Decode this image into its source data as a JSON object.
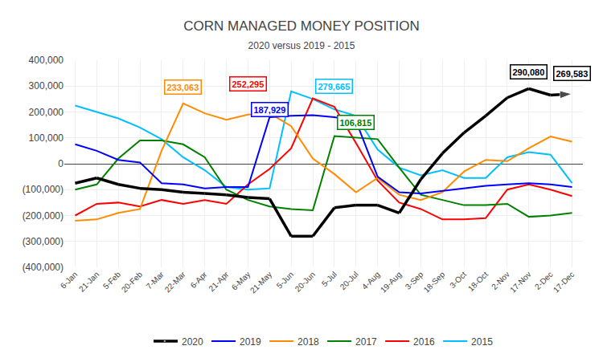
{
  "chart_data": {
    "type": "line",
    "title": "CORN MANAGED MONEY POSITION",
    "subtitle": "2020 versus 2019 - 2015",
    "categories": [
      "6-Jan",
      "21-Jan",
      "5-Feb",
      "20-Feb",
      "7-Mar",
      "22-Mar",
      "6-Apr",
      "21-Apr",
      "6-May",
      "21-May",
      "5-Jun",
      "20-Jun",
      "5-Jul",
      "20-Jul",
      "4-Aug",
      "19-Aug",
      "3-Sep",
      "18-Sep",
      "3-Oct",
      "18-Oct",
      "2-Nov",
      "17-Nov",
      "2-Dec",
      "17-Dec"
    ],
    "series": [
      {
        "name": "2015",
        "color": "#00BFFF",
        "values": [
          225000,
          200000,
          175000,
          140000,
          95000,
          25000,
          -25000,
          -90000,
          -100000,
          -95000,
          279665,
          250000,
          210000,
          185000,
          55000,
          -15000,
          -45000,
          -25000,
          -55000,
          -55000,
          25000,
          45000,
          35000,
          -75000
        ]
      },
      {
        "name": "2016",
        "color": "#FF0000",
        "values": [
          -200000,
          -155000,
          -150000,
          -165000,
          -140000,
          -155000,
          -140000,
          -155000,
          -80000,
          -20000,
          60000,
          252295,
          220000,
          80000,
          -65000,
          -150000,
          -175000,
          -215000,
          -215000,
          -210000,
          -100000,
          -80000,
          -100000,
          -125000
        ]
      },
      {
        "name": "2017",
        "color": "#008000",
        "values": [
          -100000,
          -80000,
          20000,
          90000,
          90000,
          75000,
          25000,
          -100000,
          -140000,
          -165000,
          -175000,
          -180000,
          106815,
          100000,
          95000,
          -15000,
          -120000,
          -140000,
          -160000,
          -160000,
          -155000,
          -205000,
          -200000,
          -190000
        ]
      },
      {
        "name": "2018",
        "color": "#FF8C00",
        "values": [
          -220000,
          -215000,
          -190000,
          -175000,
          50000,
          233063,
          195000,
          170000,
          190000,
          195000,
          145000,
          20000,
          -40000,
          -110000,
          -55000,
          -120000,
          -140000,
          -110000,
          -30000,
          15000,
          10000,
          60000,
          105000,
          85000
        ]
      },
      {
        "name": "2019",
        "color": "#0000FF",
        "values": [
          75000,
          50000,
          15000,
          5000,
          -75000,
          -80000,
          -95000,
          -90000,
          -90000,
          180000,
          185000,
          187929,
          180000,
          165000,
          -50000,
          -110000,
          -115000,
          -105000,
          -95000,
          -85000,
          -80000,
          -75000,
          -80000,
          -90000
        ]
      },
      {
        "name": "2020",
        "color": "#000000",
        "marker": "arrow",
        "values": [
          -75000,
          -55000,
          -80000,
          -95000,
          -100000,
          -110000,
          -115000,
          -120000,
          -130000,
          -135000,
          -280000,
          -280000,
          -170000,
          -160000,
          -160000,
          -190000,
          -60000,
          40000,
          120000,
          185000,
          255000,
          290000,
          265000,
          269583
        ]
      }
    ],
    "annotations": [
      {
        "text": "233,063",
        "x": "22-Mar",
        "y": 295000,
        "color": "#FF8C00"
      },
      {
        "text": "252,295",
        "x": "6-May",
        "y": 310000,
        "color": "#FF0000"
      },
      {
        "text": "187,929",
        "x": "21-May",
        "y": 210000,
        "color": "#0000FF"
      },
      {
        "text": "279,665",
        "x": "5-Jul",
        "y": 300000,
        "color": "#00BFFF"
      },
      {
        "text": "106,815",
        "x": "20-Jul",
        "y": 160000,
        "color": "#008000"
      },
      {
        "text": "290,080",
        "x": "17-Nov",
        "y": 355000,
        "color": "#000000"
      },
      {
        "text": "269,583",
        "x": "17-Dec",
        "y": 350000,
        "color": "#000000"
      }
    ],
    "ylim": [
      -400000,
      400000
    ],
    "yticks": [
      {
        "value": -400000,
        "label": "(400,000)"
      },
      {
        "value": -300000,
        "label": "(300,000)"
      },
      {
        "value": -200000,
        "label": "(200,000)"
      },
      {
        "value": -100000,
        "label": "(100,000)"
      },
      0,
      {
        "value": 100000,
        "label": "100,000"
      },
      {
        "value": 200000,
        "label": "200,000"
      },
      {
        "value": 300000,
        "label": "300,000"
      },
      {
        "value": 400000,
        "label": "400,000"
      }
    ],
    "grid": true,
    "legend": "bottom"
  }
}
